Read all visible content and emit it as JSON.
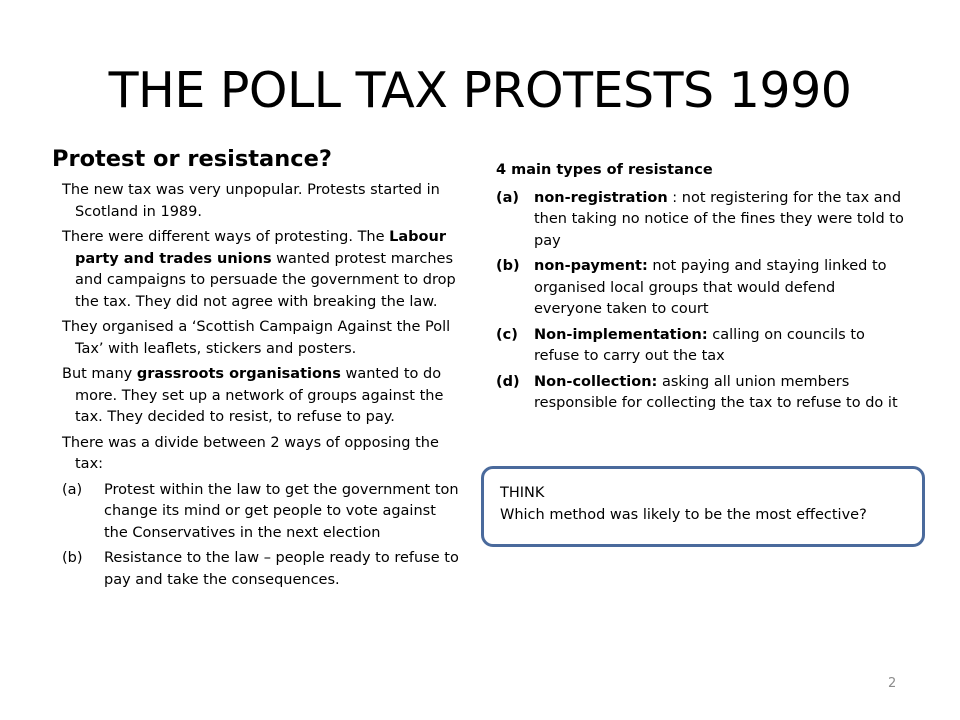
{
  "title": "THE POLL TAX PROTESTS 1990",
  "left": {
    "heading": "Protest or resistance?",
    "p1": "The new tax was very unpopular. Protests started in Scotland in 1989.",
    "p2_a": "There were different ways of protesting. The ",
    "p2_b": "Labour party and trades unions",
    "p2_c": " wanted protest marches and campaigns to persuade the government to drop the tax. They did not agree with breaking the law.",
    "p3": "They organised a ‘Scottish Campaign Against the Poll Tax’ with leaflets, stickers and posters.",
    "p4_a": "But many ",
    "p4_b": "grassroots organisations",
    "p4_c": " wanted to do more. They set up a network of groups against the tax. They decided to resist, to refuse to pay.",
    "p5": "There was a divide between 2 ways of opposing the tax:",
    "opts": [
      {
        "label": "(a)",
        "text": "Protest within the law to get the government ton change its mind or get people to vote against the Conservatives in the next election"
      },
      {
        "label": "(b)",
        "text": "Resistance to the law – people ready to refuse to pay and take the consequences."
      }
    ]
  },
  "right": {
    "heading": "4 main types of resistance",
    "items": [
      {
        "label": "(a)",
        "term": "non-registration",
        "text": " : not registering for the tax and then  taking no notice of the fines they were told to pay"
      },
      {
        "label": "(b)",
        "term": "non-payment:",
        "text": " not paying and staying linked to organised local groups that would defend everyone taken to court"
      },
      {
        "label": "(c)",
        "term": "Non-implementation:",
        "text": " calling on councils to refuse to carry out the tax"
      },
      {
        "label": "(d)",
        "term": "Non-collection:",
        "text": " asking all union members responsible for collecting the tax to refuse to do it"
      }
    ]
  },
  "think": {
    "label": "THINK",
    "question": "Which  method was likely to be the most effective?"
  },
  "page_number": "2"
}
